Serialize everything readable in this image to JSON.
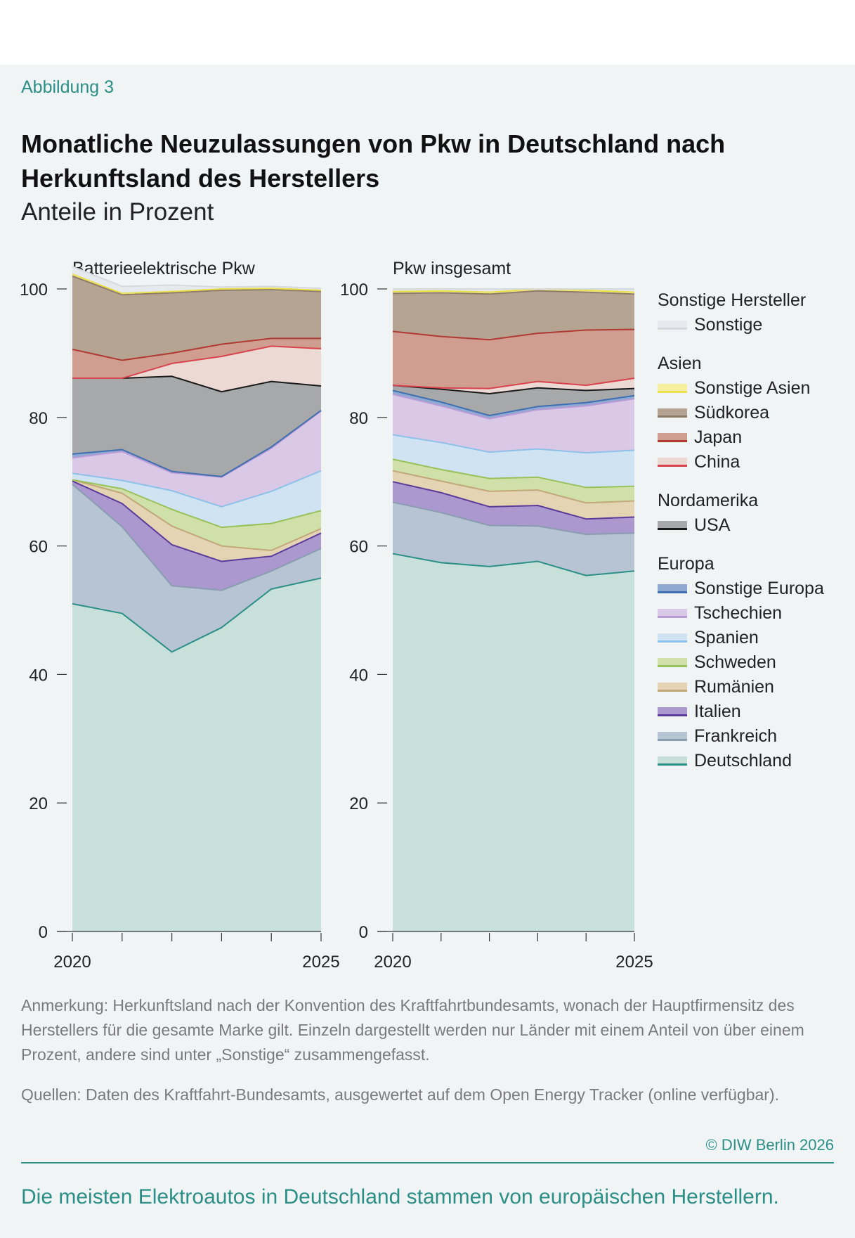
{
  "figure_label": "Abbildung 3",
  "title": "Monatliche Neuzulassungen von Pkw in Deutschland nach Herkunftsland des Herstellers",
  "subtitle": "Anteile in Prozent",
  "legend": {
    "groups": [
      {
        "label": "Sonstige Hersteller",
        "items": [
          {
            "label": "Sonstige",
            "key": "sonstige"
          }
        ]
      },
      {
        "label": "Asien",
        "items": [
          {
            "label": "Sonstige Asien",
            "key": "sonstige_asien"
          },
          {
            "label": "Südkorea",
            "key": "suedkorea"
          },
          {
            "label": "Japan",
            "key": "japan"
          },
          {
            "label": "China",
            "key": "china"
          }
        ]
      },
      {
        "label": "Nordamerika",
        "items": [
          {
            "label": "USA",
            "key": "usa"
          }
        ]
      },
      {
        "label": "Europa",
        "items": [
          {
            "label": "Sonstige Europa",
            "key": "sonstige_europa"
          },
          {
            "label": "Tschechien",
            "key": "tschechien"
          },
          {
            "label": "Spanien",
            "key": "spanien"
          },
          {
            "label": "Schweden",
            "key": "schweden"
          },
          {
            "label": "Rumänien",
            "key": "rumaenien"
          },
          {
            "label": "Italien",
            "key": "italien"
          },
          {
            "label": "Frankreich",
            "key": "frankreich"
          },
          {
            "label": "Deutschland",
            "key": "deutschland"
          }
        ]
      }
    ]
  },
  "colors": {
    "deutschland": {
      "fill": "#c7e0da",
      "line": "#2b8f87"
    },
    "frankreich": {
      "fill": "#b6c4d3",
      "line": "#8a9cb0"
    },
    "italien": {
      "fill": "#ab98cf",
      "line": "#5a3a9a"
    },
    "rumaenien": {
      "fill": "#e4d4b4",
      "line": "#c2a77a"
    },
    "schweden": {
      "fill": "#cfe0a8",
      "line": "#98c15a"
    },
    "spanien": {
      "fill": "#cfe3f3",
      "line": "#8ec1e8"
    },
    "tschechien": {
      "fill": "#d9c9e6",
      "line": "#b99bd6"
    },
    "sonstige_europa": {
      "fill": "#8ea9d2",
      "line": "#3f6fb0"
    },
    "usa": {
      "fill": "#a6a8aa",
      "line": "#1a1a1a"
    },
    "china": {
      "fill": "#ecd9d3",
      "line": "#d9434d"
    },
    "japan": {
      "fill": "#cf9e90",
      "line": "#b03a32"
    },
    "suedkorea": {
      "fill": "#b5a492",
      "line": "#8e7a68"
    },
    "sonstige_asien": {
      "fill": "#f5f0a0",
      "line": "#eae04a"
    },
    "sonstige": {
      "fill": "#e6e9ed",
      "line": "#d6dadf"
    }
  },
  "chart_data": [
    {
      "type": "area",
      "stacked": true,
      "title": "Batterieelektrische Pkw",
      "x": [
        2020,
        2021,
        2022,
        2023,
        2024,
        2025
      ],
      "x_tick_labels": [
        "2020",
        "",
        "",
        "",
        "",
        "2025"
      ],
      "ylim": [
        0,
        100
      ],
      "y_ticks": [
        0,
        20,
        40,
        60,
        80,
        100
      ],
      "series": [
        {
          "name": "Deutschland",
          "key": "deutschland",
          "values": [
            51.0,
            49.5,
            43.5,
            47.3,
            53.3,
            55.0
          ]
        },
        {
          "name": "Frankreich",
          "key": "frankreich",
          "values": [
            18.6,
            13.5,
            10.3,
            5.8,
            2.8,
            4.6
          ]
        },
        {
          "name": "Italien",
          "key": "italien",
          "values": [
            0.5,
            3.6,
            6.4,
            4.5,
            2.3,
            2.4
          ]
        },
        {
          "name": "Rumänien",
          "key": "rumaenien",
          "values": [
            0.2,
            1.6,
            2.9,
            2.4,
            0.9,
            0.7
          ]
        },
        {
          "name": "Schweden",
          "key": "schweden",
          "values": [
            0.0,
            0.7,
            2.6,
            2.9,
            4.2,
            2.8
          ]
        },
        {
          "name": "Spanien",
          "key": "spanien",
          "values": [
            1.0,
            1.3,
            2.9,
            3.2,
            5.0,
            6.2
          ]
        },
        {
          "name": "Tschechien",
          "key": "tschechien",
          "values": [
            2.4,
            4.5,
            2.8,
            4.6,
            6.7,
            9.3
          ]
        },
        {
          "name": "Sonstige Europa",
          "key": "sonstige_europa",
          "values": [
            0.6,
            0.3,
            0.2,
            0.1,
            0.2,
            0.1
          ]
        },
        {
          "name": "USA",
          "key": "usa",
          "values": [
            11.8,
            11.1,
            14.8,
            13.2,
            10.2,
            3.8
          ]
        },
        {
          "name": "China",
          "key": "china",
          "values": [
            0.0,
            0.0,
            2.0,
            5.5,
            5.5,
            5.8
          ]
        },
        {
          "name": "Japan",
          "key": "japan",
          "values": [
            4.5,
            2.8,
            1.6,
            1.9,
            1.2,
            1.6
          ]
        },
        {
          "name": "Südkorea",
          "key": "suedkorea",
          "values": [
            11.4,
            10.2,
            9.4,
            8.4,
            7.6,
            7.3
          ]
        },
        {
          "name": "Sonstige Asien",
          "key": "sonstige_asien",
          "values": [
            0.3,
            0.2,
            0.2,
            0.2,
            0.2,
            0.2
          ]
        },
        {
          "name": "Sonstige",
          "key": "sonstige",
          "values": [
            1.2,
            1.1,
            1.0,
            0.3,
            0.3,
            0.3
          ]
        }
      ]
    },
    {
      "type": "area",
      "stacked": true,
      "title": "Pkw insgesamt",
      "x": [
        2020,
        2021,
        2022,
        2023,
        2024,
        2025
      ],
      "x_tick_labels": [
        "2020",
        "",
        "",
        "",
        "",
        "2025"
      ],
      "ylim": [
        0,
        100
      ],
      "y_ticks": [
        0,
        20,
        40,
        60,
        80,
        100
      ],
      "series": [
        {
          "name": "Deutschland",
          "key": "deutschland",
          "values": [
            58.8,
            57.4,
            56.8,
            57.6,
            55.4,
            56.1
          ]
        },
        {
          "name": "Frankreich",
          "key": "frankreich",
          "values": [
            8.0,
            7.8,
            6.4,
            5.5,
            6.4,
            5.9
          ]
        },
        {
          "name": "Italien",
          "key": "italien",
          "values": [
            3.2,
            3.1,
            2.9,
            3.2,
            2.4,
            2.5
          ]
        },
        {
          "name": "Rumänien",
          "key": "rumaenien",
          "values": [
            1.7,
            1.8,
            2.4,
            2.4,
            2.5,
            2.5
          ]
        },
        {
          "name": "Schweden",
          "key": "schweden",
          "values": [
            1.8,
            1.8,
            2.0,
            2.0,
            2.4,
            2.3
          ]
        },
        {
          "name": "Spanien",
          "key": "spanien",
          "values": [
            3.8,
            4.2,
            4.1,
            4.4,
            5.4,
            5.6
          ]
        },
        {
          "name": "Tschechien",
          "key": "tschechien",
          "values": [
            6.3,
            5.7,
            5.2,
            6.1,
            7.3,
            8.0
          ]
        },
        {
          "name": "Sonstige Europa",
          "key": "sonstige_europa",
          "values": [
            0.6,
            0.6,
            0.5,
            0.5,
            0.5,
            0.5
          ]
        },
        {
          "name": "USA",
          "key": "usa",
          "values": [
            0.8,
            2.0,
            3.4,
            2.9,
            1.9,
            1.1
          ]
        },
        {
          "name": "China",
          "key": "china",
          "values": [
            0.0,
            0.2,
            0.8,
            1.0,
            0.8,
            1.6
          ]
        },
        {
          "name": "Japan",
          "key": "japan",
          "values": [
            8.4,
            8.0,
            7.6,
            7.5,
            8.6,
            7.6
          ]
        },
        {
          "name": "Südkorea",
          "key": "suedkorea",
          "values": [
            5.9,
            6.8,
            7.1,
            6.6,
            5.9,
            5.5
          ]
        },
        {
          "name": "Sonstige Asien",
          "key": "sonstige_asien",
          "values": [
            0.3,
            0.3,
            0.3,
            0.3,
            0.3,
            0.3
          ]
        },
        {
          "name": "Sonstige",
          "key": "sonstige",
          "values": [
            0.4,
            0.3,
            0.5,
            0.0,
            0.2,
            0.5
          ]
        }
      ]
    }
  ],
  "note": "Anmerkung: Herkunftsland nach der Konvention des Kraftfahrtbundesamts, wonach der Hauptfirmensitz des Herstellers für die gesamte Marke gilt. Einzeln dargestellt werden nur Länder mit einem Anteil von über einem Prozent, andere sind unter „Sonstige“ zusammengefasst.",
  "source": "Quellen: Daten des Kraftfahrt-Bundesamts, ausgewertet auf dem Open Energy Tracker (online verfügbar).",
  "copyright": "© DIW Berlin 2026",
  "takeaway": "Die meisten Elektroautos in Deutschland stammen von europäischen Herstellern."
}
